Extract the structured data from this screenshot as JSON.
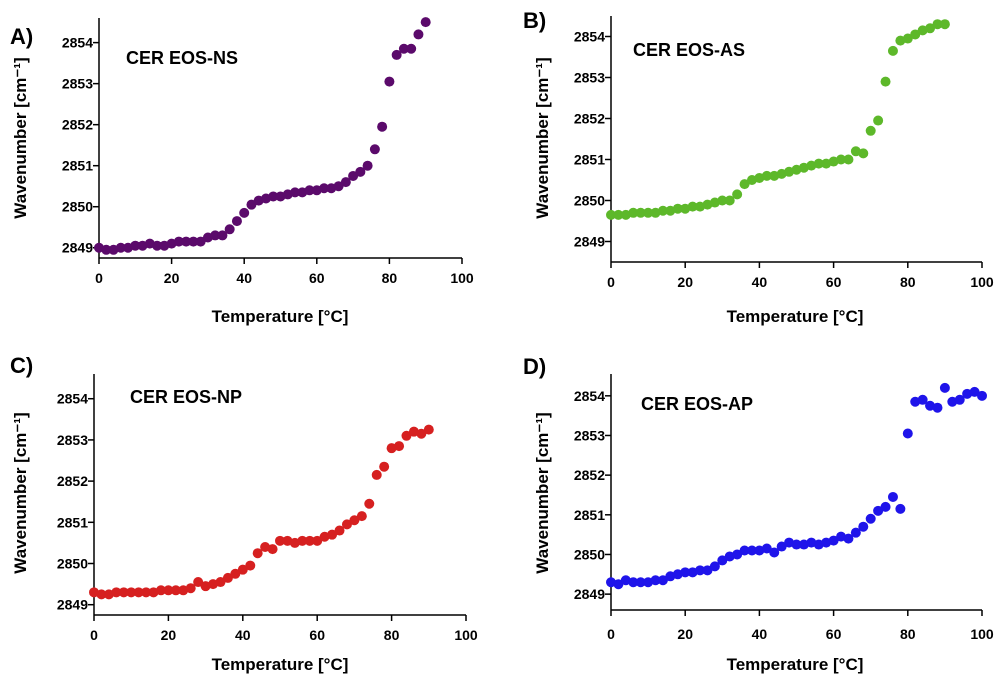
{
  "chart_data": [
    {
      "type": "scatter",
      "panel_label": "A)",
      "title": "CER EOS-NS",
      "xlabel": "Temperature [°C]",
      "ylabel": "Wavenumber [cm⁻¹]",
      "xlim": [
        0,
        100
      ],
      "ylim": [
        2848.75,
        2854.6
      ],
      "xticks": [
        0,
        20,
        40,
        60,
        80,
        100
      ],
      "yticks": [
        2849,
        2850,
        2851,
        2852,
        2853,
        2854
      ],
      "color": "#5b0a6b",
      "series": [
        {
          "x": [
            0,
            2,
            4,
            6,
            8,
            10,
            12,
            14,
            16,
            18,
            20,
            22,
            24,
            26,
            28,
            30,
            32,
            34,
            36,
            38,
            40,
            42,
            44,
            46,
            48,
            50,
            52,
            54,
            56,
            58,
            60,
            62,
            64,
            66,
            68,
            70,
            72,
            74,
            76,
            78,
            80,
            82,
            84,
            86,
            88,
            90
          ],
          "y": [
            2849.0,
            2848.95,
            2848.95,
            2849.0,
            2849.0,
            2849.05,
            2849.05,
            2849.1,
            2849.05,
            2849.05,
            2849.1,
            2849.15,
            2849.15,
            2849.15,
            2849.15,
            2849.25,
            2849.3,
            2849.3,
            2849.45,
            2849.65,
            2849.85,
            2850.05,
            2850.15,
            2850.2,
            2850.25,
            2850.25,
            2850.3,
            2850.35,
            2850.35,
            2850.4,
            2850.4,
            2850.45,
            2850.45,
            2850.5,
            2850.6,
            2850.75,
            2850.85,
            2851.0,
            2851.4,
            2851.95,
            2853.05,
            2853.7,
            2853.85,
            2853.85,
            2854.2,
            2854.5
          ]
        }
      ]
    },
    {
      "type": "scatter",
      "panel_label": "B)",
      "title": "CER EOS-AS",
      "xlabel": "Temperature [°C]",
      "ylabel": "Wavenumber [cm⁻¹]",
      "xlim": [
        0,
        100
      ],
      "ylim": [
        2848.5,
        2854.5
      ],
      "xticks": [
        0,
        20,
        40,
        60,
        80,
        100
      ],
      "yticks": [
        2849,
        2850,
        2851,
        2852,
        2853,
        2854
      ],
      "color": "#5db82a",
      "series": [
        {
          "x": [
            0,
            2,
            4,
            6,
            8,
            10,
            12,
            14,
            16,
            18,
            20,
            22,
            24,
            26,
            28,
            30,
            32,
            34,
            36,
            38,
            40,
            42,
            44,
            46,
            48,
            50,
            52,
            54,
            56,
            58,
            60,
            62,
            64,
            66,
            68,
            70,
            72,
            74,
            76,
            78,
            80,
            82,
            84,
            86,
            88,
            90
          ],
          "y": [
            2849.65,
            2849.65,
            2849.65,
            2849.7,
            2849.7,
            2849.7,
            2849.7,
            2849.75,
            2849.75,
            2849.8,
            2849.8,
            2849.85,
            2849.85,
            2849.9,
            2849.95,
            2850.0,
            2850.0,
            2850.15,
            2850.4,
            2850.5,
            2850.55,
            2850.6,
            2850.6,
            2850.65,
            2850.7,
            2850.75,
            2850.8,
            2850.85,
            2850.9,
            2850.9,
            2850.95,
            2851.0,
            2851.0,
            2851.2,
            2851.15,
            2851.7,
            2851.95,
            2852.9,
            2853.65,
            2853.9,
            2853.95,
            2854.05,
            2854.15,
            2854.2,
            2854.3,
            2854.3
          ]
        }
      ]
    },
    {
      "type": "scatter",
      "panel_label": "C)",
      "title": "CER EOS-NP",
      "xlabel": "Temperature [°C]",
      "ylabel": "Wavenumber [cm⁻¹]",
      "xlim": [
        0,
        100
      ],
      "ylim": [
        2848.75,
        2854.6
      ],
      "xticks": [
        0,
        20,
        40,
        60,
        80,
        100
      ],
      "yticks": [
        2849,
        2850,
        2851,
        2852,
        2853,
        2854
      ],
      "color": "#d62020",
      "series": [
        {
          "x": [
            0,
            2,
            4,
            6,
            8,
            10,
            12,
            14,
            16,
            18,
            20,
            22,
            24,
            26,
            28,
            30,
            32,
            34,
            36,
            38,
            40,
            42,
            44,
            46,
            48,
            50,
            52,
            54,
            56,
            58,
            60,
            62,
            64,
            66,
            68,
            70,
            72,
            74,
            76,
            78,
            80,
            82,
            84,
            86,
            88,
            90
          ],
          "y": [
            2849.3,
            2849.25,
            2849.25,
            2849.3,
            2849.3,
            2849.3,
            2849.3,
            2849.3,
            2849.3,
            2849.35,
            2849.35,
            2849.35,
            2849.35,
            2849.4,
            2849.55,
            2849.45,
            2849.5,
            2849.55,
            2849.65,
            2849.75,
            2849.85,
            2849.95,
            2850.25,
            2850.4,
            2850.35,
            2850.55,
            2850.55,
            2850.5,
            2850.55,
            2850.55,
            2850.55,
            2850.65,
            2850.7,
            2850.8,
            2850.95,
            2851.05,
            2851.15,
            2851.45,
            2852.15,
            2852.35,
            2852.8,
            2852.85,
            2853.1,
            2853.2,
            2853.15,
            2853.25
          ]
        }
      ]
    },
    {
      "type": "scatter",
      "panel_label": "D)",
      "title": "CER EOS-AP",
      "xlabel": "Temperature [°C]",
      "ylabel": "Wavenumber [cm⁻¹]",
      "xlim": [
        0,
        100
      ],
      "ylim": [
        2848.6,
        2854.55
      ],
      "xticks": [
        0,
        20,
        40,
        60,
        80,
        100
      ],
      "yticks": [
        2849,
        2850,
        2851,
        2852,
        2853,
        2854
      ],
      "color": "#1f14ea",
      "series": [
        {
          "x": [
            0,
            2,
            4,
            6,
            8,
            10,
            12,
            14,
            16,
            18,
            20,
            22,
            24,
            26,
            28,
            30,
            32,
            34,
            36,
            38,
            40,
            42,
            44,
            46,
            48,
            50,
            52,
            54,
            56,
            58,
            60,
            62,
            64,
            66,
            68,
            70,
            72,
            74,
            76,
            78,
            80,
            82,
            84,
            86,
            88,
            90,
            92,
            94,
            96,
            98,
            100
          ],
          "y": [
            2849.3,
            2849.25,
            2849.35,
            2849.3,
            2849.3,
            2849.3,
            2849.35,
            2849.35,
            2849.45,
            2849.5,
            2849.55,
            2849.55,
            2849.6,
            2849.6,
            2849.7,
            2849.85,
            2849.95,
            2850.0,
            2850.1,
            2850.1,
            2850.1,
            2850.15,
            2850.05,
            2850.2,
            2850.3,
            2850.25,
            2850.25,
            2850.3,
            2850.25,
            2850.3,
            2850.35,
            2850.45,
            2850.4,
            2850.55,
            2850.7,
            2850.9,
            2851.1,
            2851.2,
            2851.45,
            2851.15,
            2853.05,
            2853.85,
            2853.9,
            2853.75,
            2853.7,
            2854.2,
            2853.85,
            2853.9,
            2854.05,
            2854.1,
            2854.0
          ]
        }
      ]
    }
  ]
}
